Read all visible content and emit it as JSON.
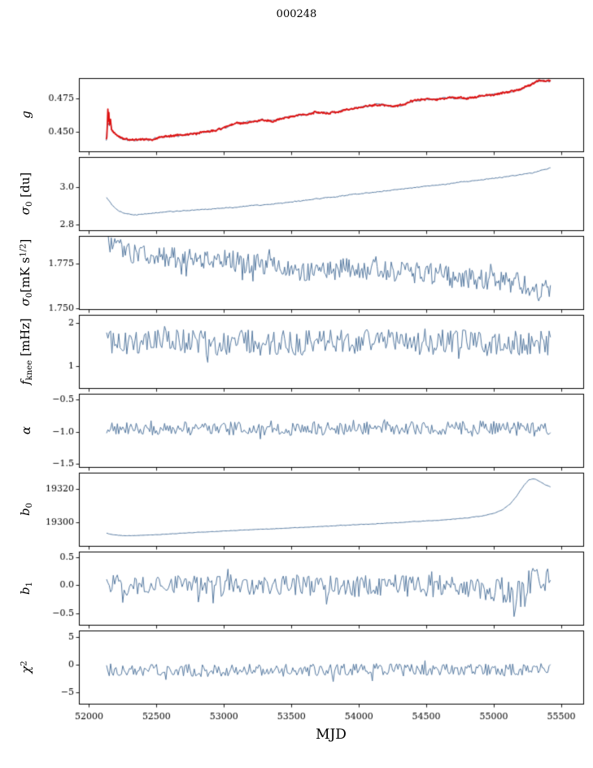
{
  "title": "000248",
  "colors": {
    "line_blue": "#54789f",
    "line_red": "#dd1111",
    "axis": "#000000"
  },
  "x_axis": {
    "label": "MJD",
    "lim": [
      51925,
      55663
    ],
    "ticks": [
      {
        "v": 52000,
        "label": "52000"
      },
      {
        "v": 52500,
        "label": "52500"
      },
      {
        "v": 53000,
        "label": "53000"
      },
      {
        "v": 53500,
        "label": "53500"
      },
      {
        "v": 54000,
        "label": "54000"
      },
      {
        "v": 54500,
        "label": "54500"
      },
      {
        "v": 55000,
        "label": "55000"
      },
      {
        "v": 55500,
        "label": "55500"
      }
    ]
  },
  "chart_data": [
    {
      "type": "line",
      "name": "gain",
      "ylabel": "g",
      "ylabel_parts": [
        {
          "t": "g",
          "i": 1
        }
      ],
      "ylim": [
        0.4355,
        0.4898
      ],
      "yticks": [
        {
          "v": 0.45,
          "label": "0.450"
        },
        {
          "v": 0.475,
          "label": "0.475"
        }
      ],
      "x_range": [
        52128,
        55420
      ],
      "series": [
        {
          "color": "#54789f",
          "width": 1.0,
          "seed": 12,
          "n": 420,
          "noise": 0.0009,
          "ar": 1,
          "anchors": [
            [
              52128,
              0.444
            ],
            [
              52130,
              0.472
            ],
            [
              52132,
              0.4445
            ],
            [
              52134,
              0.4715
            ],
            [
              52137,
              0.445
            ],
            [
              52140,
              0.47
            ],
            [
              52144,
              0.456
            ],
            [
              52148,
              0.465
            ],
            [
              52152,
              0.453
            ],
            [
              52158,
              0.46
            ],
            [
              52165,
              0.452
            ],
            [
              52175,
              0.4505
            ],
            [
              52190,
              0.449
            ],
            [
              52210,
              0.447
            ],
            [
              52240,
              0.4455
            ],
            [
              52280,
              0.4443
            ],
            [
              52330,
              0.444
            ],
            [
              52400,
              0.4446
            ],
            [
              52470,
              0.444
            ],
            [
              52520,
              0.446
            ],
            [
              52600,
              0.4469
            ],
            [
              52700,
              0.4478
            ],
            [
              52800,
              0.449
            ],
            [
              52900,
              0.4503
            ],
            [
              53000,
              0.453
            ],
            [
              53060,
              0.4555
            ],
            [
              53120,
              0.4562
            ],
            [
              53200,
              0.4575
            ],
            [
              53280,
              0.4588
            ],
            [
              53360,
              0.458
            ],
            [
              53440,
              0.4602
            ],
            [
              53520,
              0.4615
            ],
            [
              53600,
              0.463
            ],
            [
              53680,
              0.4645
            ],
            [
              53760,
              0.464
            ],
            [
              53840,
              0.4648
            ],
            [
              53920,
              0.4666
            ],
            [
              54000,
              0.468
            ],
            [
              54080,
              0.4693
            ],
            [
              54160,
              0.47
            ],
            [
              54240,
              0.4688
            ],
            [
              54320,
              0.47
            ],
            [
              54400,
              0.473
            ],
            [
              54480,
              0.4742
            ],
            [
              54560,
              0.4738
            ],
            [
              54640,
              0.475
            ],
            [
              54720,
              0.4752
            ],
            [
              54800,
              0.4748
            ],
            [
              54880,
              0.476
            ],
            [
              54960,
              0.4772
            ],
            [
              55040,
              0.4782
            ],
            [
              55120,
              0.4798
            ],
            [
              55200,
              0.4818
            ],
            [
              55260,
              0.4843
            ],
            [
              55310,
              0.4868
            ],
            [
              55350,
              0.4885
            ],
            [
              55380,
              0.4872
            ],
            [
              55420,
              0.4878
            ]
          ]
        },
        {
          "color": "#dd1111",
          "width": 1.8,
          "seed": 5,
          "n": 850,
          "noise": 0.0008,
          "ar": 1
        }
      ]
    },
    {
      "type": "line",
      "name": "sigma0-du",
      "ylabel": "σ0 [du]",
      "ylabel_parts": [
        {
          "t": "σ",
          "i": 1
        },
        {
          "t": "0",
          "sub": 1
        },
        {
          "t": " [du]"
        }
      ],
      "ylim": [
        2.769,
        3.161
      ],
      "yticks": [
        {
          "v": 2.8,
          "label": "2.8"
        },
        {
          "v": 3.0,
          "label": "3.0"
        }
      ],
      "x_range": [
        52130,
        55420
      ],
      "series": [
        {
          "color": "#54789f",
          "width": 1.0,
          "seed": 21,
          "n": 420,
          "noise": 0.0028,
          "ar": 1,
          "anchors": [
            [
              52130,
              2.945
            ],
            [
              52170,
              2.905
            ],
            [
              52220,
              2.872
            ],
            [
              52270,
              2.858
            ],
            [
              52330,
              2.852
            ],
            [
              52400,
              2.856
            ],
            [
              52500,
              2.862
            ],
            [
              52600,
              2.868
            ],
            [
              52700,
              2.873
            ],
            [
              52800,
              2.877
            ],
            [
              52900,
              2.882
            ],
            [
              53000,
              2.888
            ],
            [
              53100,
              2.894
            ],
            [
              53200,
              2.9
            ],
            [
              53300,
              2.906
            ],
            [
              53400,
              2.913
            ],
            [
              53500,
              2.921
            ],
            [
              53600,
              2.929
            ],
            [
              53700,
              2.938
            ],
            [
              53800,
              2.946
            ],
            [
              53900,
              2.955
            ],
            [
              54000,
              2.964
            ],
            [
              54100,
              2.972
            ],
            [
              54200,
              2.98
            ],
            [
              54300,
              2.988
            ],
            [
              54400,
              2.996
            ],
            [
              54500,
              3.004
            ],
            [
              54600,
              3.013
            ],
            [
              54700,
              3.021
            ],
            [
              54800,
              3.03
            ],
            [
              54900,
              3.038
            ],
            [
              55000,
              3.047
            ],
            [
              55100,
              3.056
            ],
            [
              55200,
              3.066
            ],
            [
              55300,
              3.078
            ],
            [
              55360,
              3.09
            ],
            [
              55420,
              3.103
            ]
          ]
        }
      ]
    },
    {
      "type": "line",
      "name": "sigma0-mks",
      "ylabel": "σ0 [mK s1/2]",
      "ylabel_parts": [
        {
          "t": "σ",
          "i": 1
        },
        {
          "t": "0",
          "sub": 1
        },
        {
          "t": "[mK s"
        },
        {
          "t": "1/2",
          "sup": 1
        },
        {
          "t": "]"
        }
      ],
      "ylim": [
        1.7495,
        1.7905
      ],
      "yticks": [
        {
          "v": 1.75,
          "label": "1.750"
        },
        {
          "v": 1.775,
          "label": "1.775"
        }
      ],
      "x_range": [
        52130,
        55420
      ],
      "series": [
        {
          "color": "#54789f",
          "width": 1.0,
          "seed": 31,
          "n": 380,
          "noise": 0.006,
          "sp": 0.05,
          "sm": 1.8,
          "anchors": [
            [
              52130,
              1.7895
            ],
            [
              52160,
              1.786
            ],
            [
              52200,
              1.7838
            ],
            [
              52300,
              1.7815
            ],
            [
              52400,
              1.78
            ],
            [
              52600,
              1.7788
            ],
            [
              52800,
              1.7782
            ],
            [
              53000,
              1.777
            ],
            [
              53200,
              1.7752
            ],
            [
              53400,
              1.7742
            ],
            [
              53600,
              1.77
            ],
            [
              53800,
              1.7718
            ],
            [
              54000,
              1.7725
            ],
            [
              54200,
              1.771
            ],
            [
              54400,
              1.77
            ],
            [
              54600,
              1.769
            ],
            [
              54800,
              1.7668
            ],
            [
              55000,
              1.7655
            ],
            [
              55100,
              1.7648
            ],
            [
              55200,
              1.764
            ],
            [
              55280,
              1.759
            ],
            [
              55340,
              1.757
            ],
            [
              55420,
              1.7625
            ]
          ]
        }
      ]
    },
    {
      "type": "line",
      "name": "fknee",
      "ylabel": "fknee [mHz]",
      "ylabel_parts": [
        {
          "t": "f",
          "i": 1
        },
        {
          "t": "knee",
          "sub": 1
        },
        {
          "t": " [mHz]"
        }
      ],
      "ylim": [
        0.49,
        2.18
      ],
      "yticks": [
        {
          "v": 1,
          "label": "1"
        },
        {
          "v": 2,
          "label": "2"
        }
      ],
      "x_range": [
        52130,
        55420
      ],
      "series": [
        {
          "color": "#54789f",
          "width": 1.0,
          "seed": 41,
          "n": 330,
          "noise": 0.3,
          "sp": 0.05,
          "sm": 1.6,
          "anchors": [
            [
              52130,
              1.56
            ],
            [
              53000,
              1.54
            ],
            [
              54000,
              1.55
            ],
            [
              55420,
              1.52
            ]
          ]
        }
      ]
    },
    {
      "type": "line",
      "name": "alpha",
      "ylabel": "α",
      "ylabel_parts": [
        {
          "t": "α",
          "i": 1
        }
      ],
      "ylim": [
        -1.55,
        -0.41
      ],
      "yticks": [
        {
          "v": -1.5,
          "label": "−1.5"
        },
        {
          "v": -1.0,
          "label": "−1.0"
        },
        {
          "v": -0.5,
          "label": "−0.5"
        }
      ],
      "x_range": [
        52130,
        55420
      ],
      "series": [
        {
          "color": "#54789f",
          "width": 1.0,
          "seed": 51,
          "n": 330,
          "noise": 0.105,
          "sp": 0.05,
          "sm": 1.6,
          "anchors": [
            [
              52130,
              -0.95
            ],
            [
              53500,
              -0.95
            ],
            [
              54500,
              -0.945
            ],
            [
              55420,
              -0.94
            ]
          ]
        }
      ]
    },
    {
      "type": "line",
      "name": "b0",
      "ylabel": "b0",
      "ylabel_parts": [
        {
          "t": "b",
          "i": 1
        },
        {
          "t": "0",
          "sub": 1
        }
      ],
      "ylim": [
        19286,
        19330
      ],
      "yticks": [
        {
          "v": 19300,
          "label": "19300"
        },
        {
          "v": 19320,
          "label": "19320"
        }
      ],
      "x_range": [
        52130,
        55420
      ],
      "series": [
        {
          "color": "#54789f",
          "width": 1.0,
          "seed": 61,
          "n": 450,
          "noise": 0.15,
          "ar": 1,
          "anchors": [
            [
              52130,
              19293.6
            ],
            [
              52180,
              19292.6
            ],
            [
              52250,
              19292.1
            ],
            [
              52350,
              19292.2
            ],
            [
              52500,
              19292.8
            ],
            [
              52650,
              19293.4
            ],
            [
              52800,
              19294.1
            ],
            [
              53000,
              19294.9
            ],
            [
              53200,
              19295.7
            ],
            [
              53400,
              19296.4
            ],
            [
              53600,
              19297.2
            ],
            [
              53800,
              19298.0
            ],
            [
              54000,
              19298.8
            ],
            [
              54200,
              19299.6
            ],
            [
              54400,
              19300.5
            ],
            [
              54600,
              19301.5
            ],
            [
              54750,
              19302.4
            ],
            [
              54900,
              19303.8
            ],
            [
              55000,
              19305.5
            ],
            [
              55060,
              19307.5
            ],
            [
              55120,
              19311.0
            ],
            [
              55170,
              19316.0
            ],
            [
              55220,
              19322.0
            ],
            [
              55260,
              19325.8
            ],
            [
              55300,
              19326.3
            ],
            [
              55340,
              19324.8
            ],
            [
              55380,
              19322.8
            ],
            [
              55420,
              19321.5
            ]
          ]
        }
      ]
    },
    {
      "type": "line",
      "name": "b1",
      "ylabel": "b1",
      "ylabel_parts": [
        {
          "t": "b",
          "i": 1
        },
        {
          "t": "1",
          "sub": 1
        }
      ],
      "ylim": [
        -0.71,
        0.6
      ],
      "yticks": [
        {
          "v": -0.5,
          "label": "−0.5"
        },
        {
          "v": 0.0,
          "label": "0.0"
        },
        {
          "v": 0.5,
          "label": "0.5"
        }
      ],
      "x_range": [
        52130,
        55420
      ],
      "series": [
        {
          "color": "#54789f",
          "width": 1.0,
          "seed": 71,
          "n": 330,
          "noise": 0.2,
          "sp": 0.06,
          "sm": 1.8,
          "noise2_from": 55050,
          "noise2": 0.33,
          "anchors": [
            [
              52130,
              0.0
            ],
            [
              54800,
              -0.02
            ],
            [
              55050,
              -0.1
            ],
            [
              55150,
              -0.25
            ],
            [
              55250,
              -0.05
            ],
            [
              55330,
              0.05
            ],
            [
              55420,
              0.1
            ]
          ]
        }
      ]
    },
    {
      "type": "line",
      "name": "chi2",
      "ylabel": "χ2",
      "ylabel_parts": [
        {
          "t": "χ",
          "i": 1
        },
        {
          "t": "2",
          "sup": 1
        }
      ],
      "ylim": [
        -7.1,
        6.2
      ],
      "yticks": [
        {
          "v": -5,
          "label": "−5"
        },
        {
          "v": 0,
          "label": "0"
        },
        {
          "v": 5,
          "label": "5"
        }
      ],
      "x_range": [
        52130,
        55420
      ],
      "series": [
        {
          "color": "#54789f",
          "width": 1.0,
          "seed": 81,
          "n": 330,
          "noise": 1.15,
          "sp": 0.05,
          "sm": 2.0,
          "anchors": [
            [
              52130,
              -0.9
            ],
            [
              53000,
              -1.1
            ],
            [
              54000,
              -0.9
            ],
            [
              55000,
              -1.0
            ],
            [
              55420,
              -0.8
            ]
          ]
        }
      ]
    }
  ]
}
